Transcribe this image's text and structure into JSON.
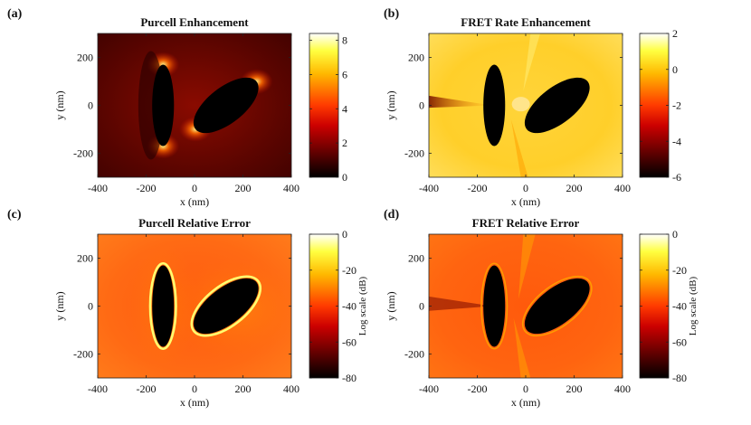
{
  "chart_data": [
    {
      "type": "heatmap",
      "panel_label": "(a)",
      "title": "Purcell Enhancement",
      "xlabel": "x (nm)",
      "ylabel": "y (nm)",
      "xlim": [
        -400,
        400
      ],
      "ylim": [
        -300,
        300
      ],
      "xticks": [
        -400,
        -200,
        0,
        200,
        400
      ],
      "yticks": [
        -200,
        0,
        200
      ],
      "colorbar": {
        "label": "",
        "ticks": [
          0,
          2,
          4,
          6,
          8
        ],
        "range": [
          0,
          8.4
        ]
      },
      "colormap": "hot",
      "particles": [
        {
          "center": [
            -130,
            0
          ],
          "semi_axes": [
            45,
            170
          ],
          "rotation_deg": 0
        },
        {
          "center": [
            130,
            0
          ],
          "semi_axes": [
            160,
            75
          ],
          "rotation_deg": 38
        }
      ]
    },
    {
      "type": "heatmap",
      "panel_label": "(b)",
      "title": "FRET Rate Enhancement",
      "xlabel": "x (nm)",
      "ylabel": "y (nm)",
      "xlim": [
        -400,
        400
      ],
      "ylim": [
        -300,
        300
      ],
      "xticks": [
        -400,
        -200,
        0,
        200,
        400
      ],
      "yticks": [
        -200,
        0,
        200
      ],
      "colorbar": {
        "label": "",
        "ticks": [
          -6,
          -4,
          -2,
          0,
          2
        ],
        "range": [
          -6,
          2
        ]
      },
      "colormap": "hot",
      "particles": [
        {
          "center": [
            -130,
            0
          ],
          "semi_axes": [
            45,
            170
          ],
          "rotation_deg": 0
        },
        {
          "center": [
            130,
            0
          ],
          "semi_axes": [
            160,
            75
          ],
          "rotation_deg": 38
        }
      ]
    },
    {
      "type": "heatmap",
      "panel_label": "(c)",
      "title": "Purcell Relative Error",
      "xlabel": "x (nm)",
      "ylabel": "y (nm)",
      "xlim": [
        -400,
        400
      ],
      "ylim": [
        -300,
        300
      ],
      "xticks": [
        -400,
        -200,
        0,
        200,
        400
      ],
      "yticks": [
        -200,
        0,
        200
      ],
      "colorbar": {
        "label": "Log scale (dB)",
        "ticks": [
          -80,
          -60,
          -40,
          -20,
          0
        ],
        "range": [
          -80,
          0
        ]
      },
      "colormap": "hot",
      "particles": [
        {
          "center": [
            -130,
            0
          ],
          "semi_axes": [
            45,
            170
          ],
          "rotation_deg": 0
        },
        {
          "center": [
            130,
            0
          ],
          "semi_axes": [
            160,
            75
          ],
          "rotation_deg": 38
        }
      ]
    },
    {
      "type": "heatmap",
      "panel_label": "(d)",
      "title": "FRET Relative Error",
      "xlabel": "x (nm)",
      "ylabel": "y (nm)",
      "xlim": [
        -400,
        400
      ],
      "ylim": [
        -300,
        300
      ],
      "xticks": [
        -400,
        -200,
        0,
        200,
        400
      ],
      "yticks": [
        -200,
        0,
        200
      ],
      "colorbar": {
        "label": "Log scale (dB)",
        "ticks": [
          -80,
          -60,
          -40,
          -20,
          0
        ],
        "range": [
          -80,
          0
        ]
      },
      "colormap": "hot",
      "particles": [
        {
          "center": [
            -130,
            0
          ],
          "semi_axes": [
            45,
            170
          ],
          "rotation_deg": 0
        },
        {
          "center": [
            130,
            0
          ],
          "semi_axes": [
            160,
            75
          ],
          "rotation_deg": 38
        }
      ]
    }
  ]
}
